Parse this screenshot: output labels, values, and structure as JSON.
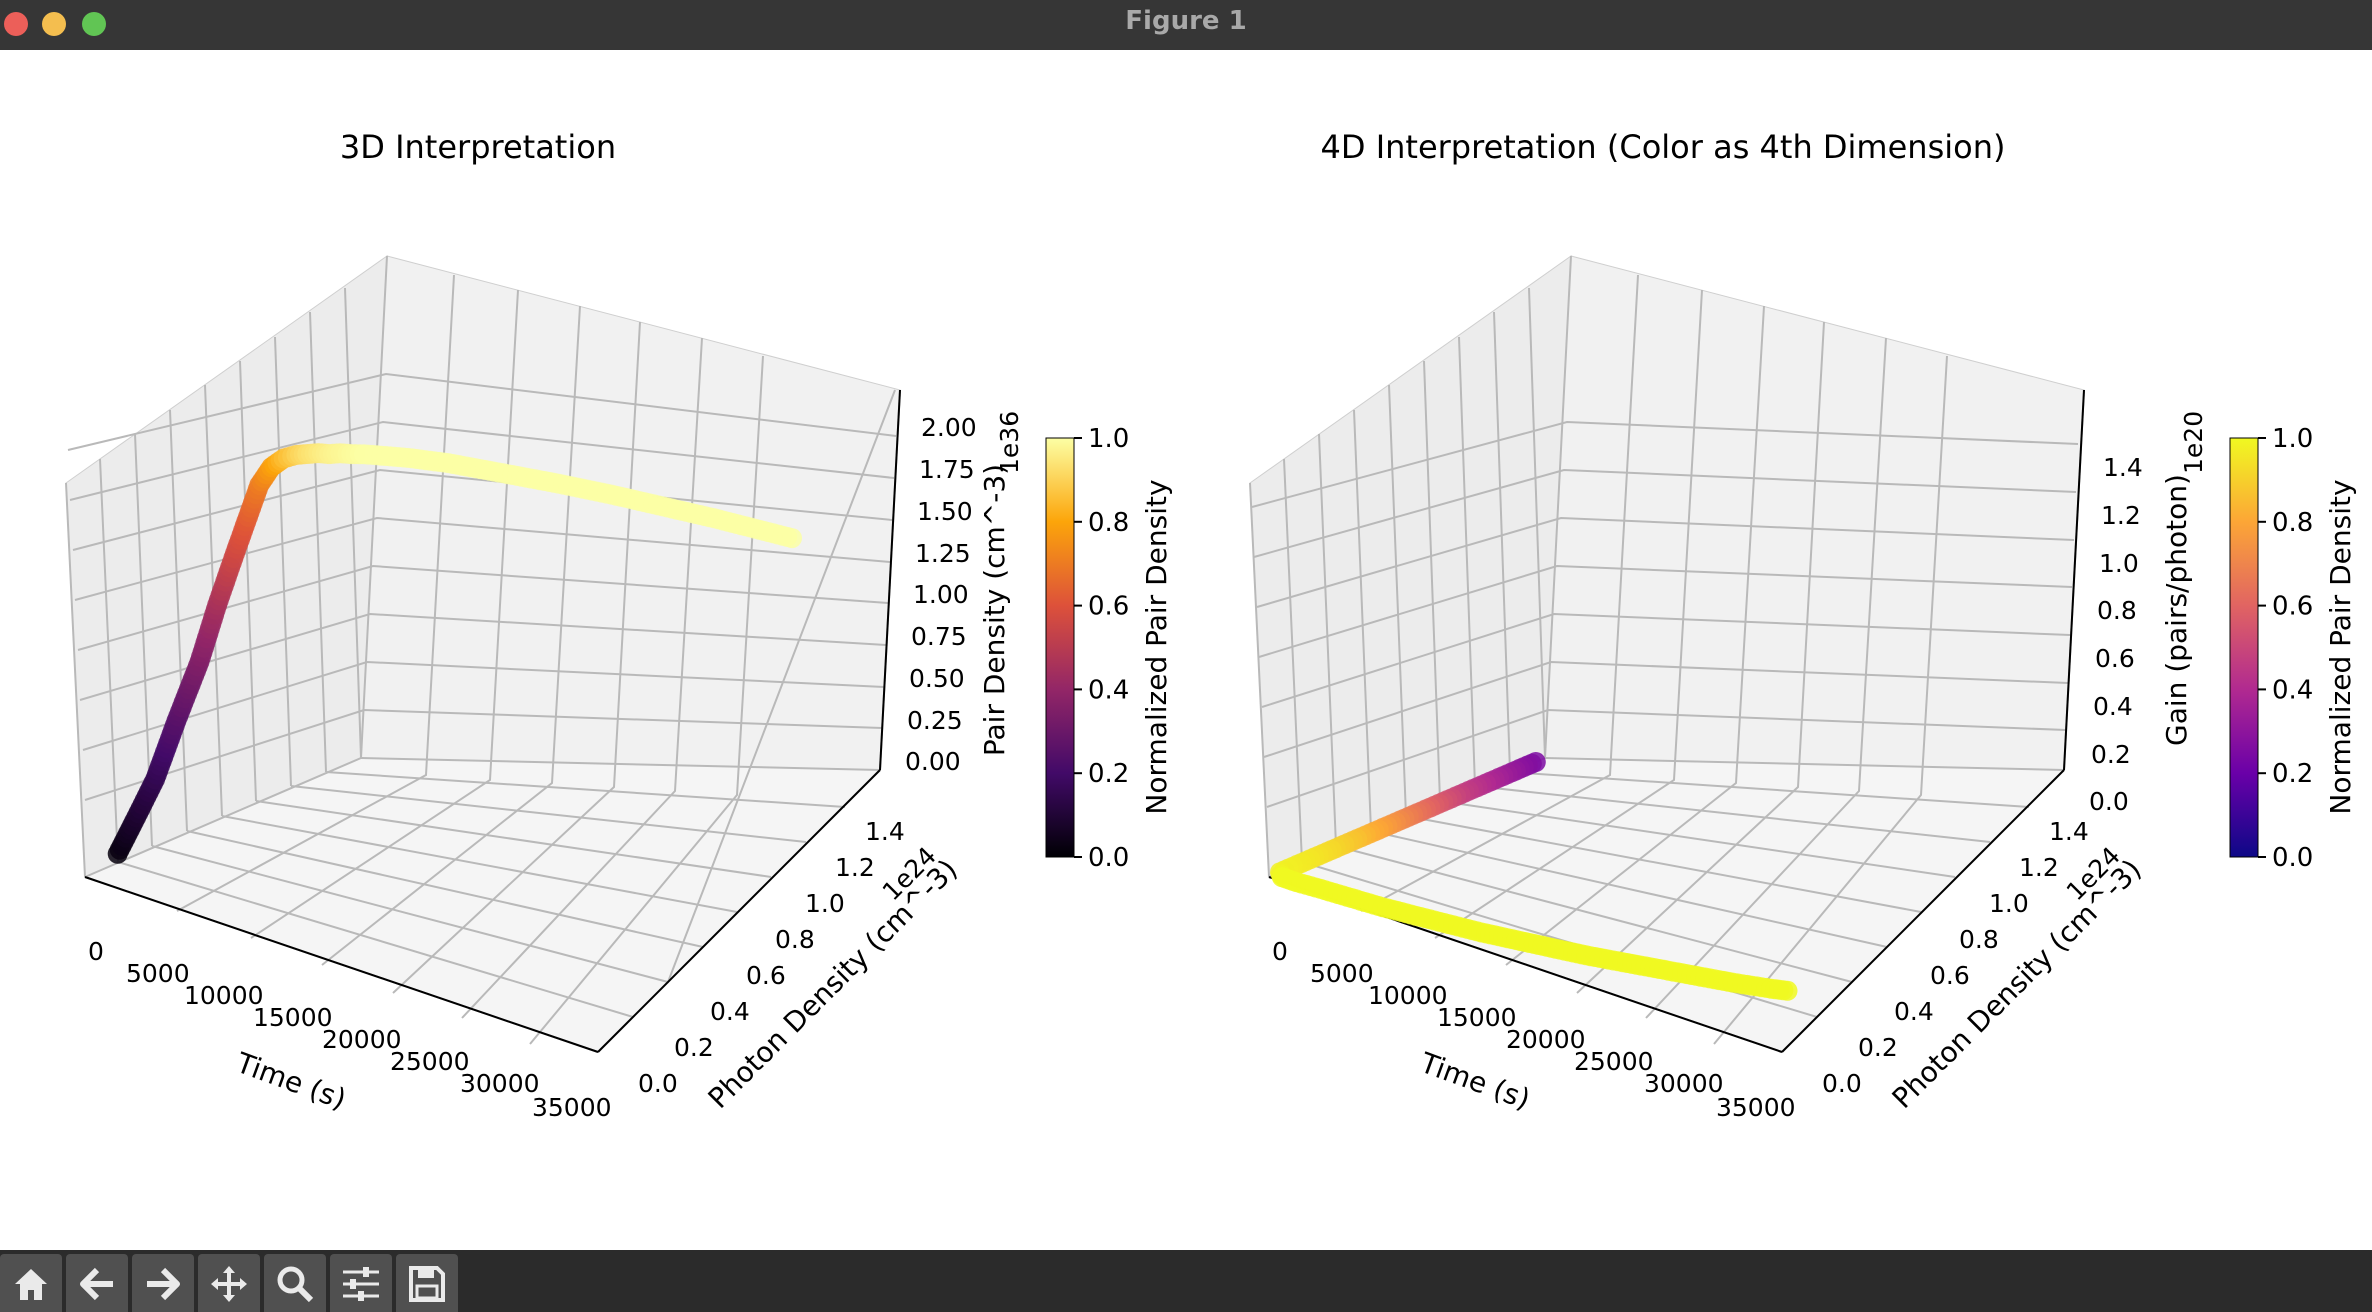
{
  "window": {
    "title": "Figure 1"
  },
  "toolbar": {
    "buttons": [
      {
        "name": "home-icon"
      },
      {
        "name": "back-arrow-icon"
      },
      {
        "name": "forward-arrow-icon"
      },
      {
        "name": "pan-icon"
      },
      {
        "name": "zoom-icon"
      },
      {
        "name": "configure-subplots-icon"
      },
      {
        "name": "save-icon"
      }
    ]
  },
  "chart_data": [
    {
      "type": "scatter3d",
      "title": "3D Interpretation",
      "xlabel": "Time (s)",
      "ylabel": "Photon Density (cm^-3)",
      "zlabel": "Pair Density (cm^-3)",
      "x_ticks": [
        "0",
        "5000",
        "10000",
        "15000",
        "20000",
        "25000",
        "30000",
        "35000"
      ],
      "y_ticks": [
        "0.0",
        "0.2",
        "0.4",
        "0.6",
        "0.8",
        "1.0",
        "1.2",
        "1.4"
      ],
      "z_ticks": [
        "0.00",
        "0.25",
        "0.50",
        "0.75",
        "1.00",
        "1.25",
        "1.50",
        "1.75",
        "2.00"
      ],
      "y_offset": "1e24",
      "z_offset": "1e36",
      "xlim": [
        0,
        35000
      ],
      "ylim": [
        0,
        1.5
      ],
      "zlim": [
        0,
        2.2
      ],
      "colormap": "inferno",
      "colors": [
        "#000004",
        "#420a68",
        "#932667",
        "#dd513a",
        "#fca50a",
        "#fcffa4"
      ],
      "colorbar": {
        "label": "Normalized Pair Density",
        "ticks": [
          "0.0",
          "0.2",
          "0.4",
          "0.6",
          "0.8",
          "1.0"
        ],
        "range": [
          0,
          1
        ]
      },
      "series": [
        {
          "x": [
            0,
            200,
            500,
            1000,
            1500,
            2000,
            2500,
            3000,
            3500,
            4000,
            4500,
            5000,
            5500,
            6000,
            6500,
            7000,
            7500,
            8000,
            9000,
            10000,
            12000,
            15000,
            18000,
            21000,
            24000,
            27000,
            30000,
            32000
          ],
          "y": [
            0.18,
            0.26,
            0.36,
            0.45,
            0.55,
            0.62,
            0.68,
            0.72,
            0.76,
            0.79,
            0.82,
            0.85,
            0.87,
            0.89,
            0.91,
            0.93,
            0.95,
            0.98,
            1.02,
            1.06,
            1.12,
            1.18,
            1.24,
            1.29,
            1.33,
            1.37,
            1.4,
            1.42
          ],
          "z": [
            0.05,
            0.2,
            0.4,
            0.7,
            1.0,
            1.3,
            1.55,
            1.75,
            1.95,
            2.05,
            2.1,
            2.12,
            2.13,
            2.14,
            2.14,
            2.15,
            2.15,
            2.15,
            2.15,
            2.15,
            2.15,
            2.15,
            2.15,
            2.15,
            2.15,
            2.15,
            2.15,
            2.15
          ],
          "c": [
            0.02,
            0.08,
            0.15,
            0.25,
            0.35,
            0.45,
            0.55,
            0.62,
            0.7,
            0.78,
            0.85,
            0.9,
            0.93,
            0.95,
            0.97,
            0.98,
            0.99,
            1,
            1,
            1,
            1,
            1,
            1,
            1,
            1,
            1,
            1,
            1
          ]
        }
      ]
    },
    {
      "type": "scatter3d",
      "title": "4D Interpretation (Color as 4th Dimension)",
      "xlabel": "Time (s)",
      "ylabel": "Photon Density (cm^-3)",
      "zlabel": "Gain (pairs/photon)",
      "x_ticks": [
        "0",
        "5000",
        "10000",
        "15000",
        "20000",
        "25000",
        "30000",
        "35000"
      ],
      "y_ticks": [
        "0.0",
        "0.2",
        "0.4",
        "0.6",
        "0.8",
        "1.0",
        "1.2",
        "1.4"
      ],
      "z_ticks": [
        "0.0",
        "0.2",
        "0.4",
        "0.6",
        "0.8",
        "1.0",
        "1.2",
        "1.4"
      ],
      "y_offset": "1e24",
      "z_offset": "1e20",
      "xlim": [
        0,
        35000
      ],
      "ylim": [
        0,
        1.5
      ],
      "zlim": [
        0,
        1.5
      ],
      "colormap": "plasma",
      "colors": [
        "#0d0887",
        "#6a00a8",
        "#b12a90",
        "#e16462",
        "#fca636",
        "#f0f921"
      ],
      "colorbar": {
        "label": "Normalized Pair Density",
        "ticks": [
          "0.0",
          "0.2",
          "0.4",
          "0.6",
          "0.8",
          "1.0"
        ],
        "range": [
          0,
          1
        ]
      },
      "series": [
        {
          "x": [
            0,
            0,
            0,
            0,
            0,
            0,
            0,
            0,
            0,
            0,
            0,
            500,
            1500,
            3000,
            5000,
            7000,
            9000,
            11000,
            13000,
            15000,
            17000,
            19000,
            21000,
            23000,
            25000,
            27000,
            29000,
            30000
          ],
          "y": [
            1.45,
            1.32,
            1.18,
            1.04,
            0.9,
            0.76,
            0.62,
            0.48,
            0.34,
            0.2,
            0.06,
            0.03,
            0.03,
            0.04,
            0.05,
            0.06,
            0.08,
            0.1,
            0.12,
            0.15,
            0.18,
            0.21,
            0.25,
            0.29,
            0.33,
            0.37,
            0.42,
            0.45
          ],
          "z": [
            0,
            0,
            0,
            0,
            0,
            0,
            0,
            0,
            0,
            0,
            0,
            0,
            0,
            0,
            0,
            0,
            0,
            0,
            0,
            0,
            0,
            0,
            0,
            0,
            0,
            0,
            0,
            0
          ],
          "c": [
            0.25,
            0.32,
            0.4,
            0.48,
            0.58,
            0.68,
            0.78,
            0.86,
            0.92,
            0.96,
            0.98,
            1,
            1,
            1,
            1,
            1,
            1,
            1,
            1,
            1,
            1,
            1,
            1,
            1,
            1,
            1,
            1,
            1
          ]
        }
      ]
    }
  ]
}
